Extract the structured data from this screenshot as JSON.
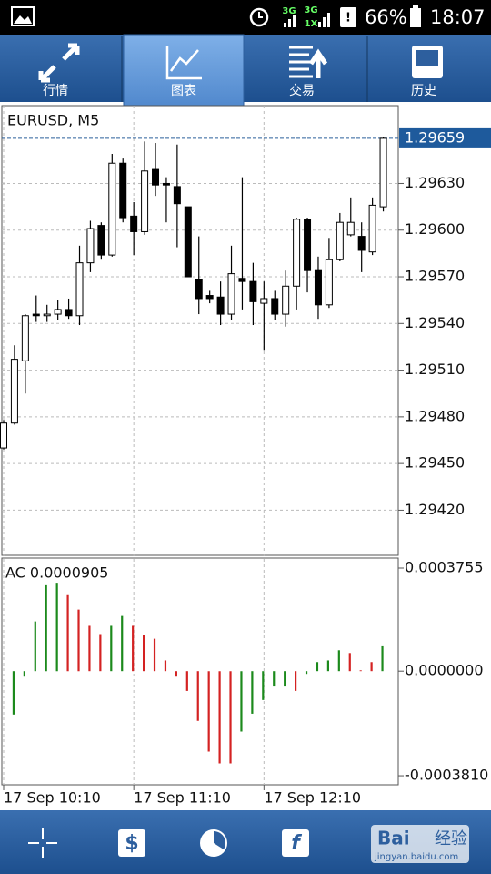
{
  "status_bar": {
    "network_1": "3G",
    "network_2": "3G",
    "network_3": "1X",
    "battery": "66%",
    "time": "18:07"
  },
  "tabs": [
    "行情",
    "图表",
    "交易",
    "历史"
  ],
  "chart_data": [
    {
      "type": "candlestick",
      "title": "EURUSD, M5",
      "categories": [
        "17 Sep 10:10",
        null,
        null,
        null,
        null,
        null,
        null,
        null,
        null,
        null,
        null,
        null,
        "17 Sep 11:10",
        null,
        null,
        null,
        null,
        null,
        null,
        null,
        null,
        null,
        null,
        null,
        "17 Sep 12:10",
        null,
        null,
        null,
        null,
        null,
        null,
        null,
        null,
        null,
        null,
        null
      ],
      "open": [
        1.2946,
        1.29476,
        1.29516,
        1.29546,
        1.29545,
        1.29546,
        1.29549,
        1.29545,
        1.29579,
        1.29603,
        1.29584,
        1.29643,
        1.29609,
        1.29599,
        1.29639,
        1.2963,
        1.29628,
        1.29615,
        1.29568,
        1.29558,
        1.29557,
        1.29546,
        1.29569,
        1.29567,
        1.29553,
        1.29556,
        1.29546,
        1.29564,
        1.29607,
        1.29574,
        1.29552,
        1.29581,
        1.29597,
        1.29596,
        1.29586,
        1.29615
      ],
      "high": [
        1.29478,
        1.29526,
        1.29546,
        1.29558,
        1.29552,
        1.29555,
        1.29556,
        1.2959,
        1.29606,
        1.29605,
        1.29649,
        1.29646,
        1.29618,
        1.29657,
        1.29656,
        1.29634,
        1.29655,
        1.29615,
        1.29596,
        1.29561,
        1.29567,
        1.2959,
        1.29634,
        1.29579,
        1.29567,
        1.29561,
        1.29574,
        1.29608,
        1.29608,
        1.29583,
        1.29595,
        1.29611,
        1.29621,
        1.29605,
        1.29621,
        1.2966
      ],
      "low": [
        1.29459,
        1.29475,
        1.29495,
        1.29541,
        1.29541,
        1.29542,
        1.29543,
        1.29539,
        1.29573,
        1.29581,
        1.29583,
        1.29605,
        1.29584,
        1.29597,
        1.29622,
        1.29605,
        1.29589,
        1.2957,
        1.29546,
        1.29553,
        1.29539,
        1.29542,
        1.29549,
        1.29539,
        1.29523,
        1.29542,
        1.29538,
        1.29549,
        1.2956,
        1.29543,
        1.2955,
        1.2958,
        1.29596,
        1.29573,
        1.29584,
        1.29612
      ],
      "close": [
        1.29476,
        1.29517,
        1.29545,
        1.29545,
        1.29546,
        1.29549,
        1.29545,
        1.29579,
        1.29601,
        1.29584,
        1.29643,
        1.29608,
        1.29599,
        1.29638,
        1.29629,
        1.29629,
        1.29617,
        1.2957,
        1.29556,
        1.29556,
        1.29546,
        1.29572,
        1.29567,
        1.29554,
        1.29556,
        1.29546,
        1.29564,
        1.29607,
        1.29574,
        1.29552,
        1.29581,
        1.29605,
        1.29605,
        1.29587,
        1.29616,
        1.29659
      ],
      "up_color": "#ffffff",
      "down_color": "#000000",
      "current_price": 1.29659,
      "ylim": [
        1.29391,
        1.2968
      ],
      "yticks": [
        {
          "value": 1.2963,
          "label": "1.29630"
        },
        {
          "value": 1.296,
          "label": "1.29600"
        },
        {
          "value": 1.2957,
          "label": "1.29570"
        },
        {
          "value": 1.2954,
          "label": "1.29540"
        },
        {
          "value": 1.2951,
          "label": "1.29510"
        },
        {
          "value": 1.2948,
          "label": "1.29480"
        },
        {
          "value": 1.2945,
          "label": "1.29450"
        },
        {
          "value": 1.2942,
          "label": "1.29420"
        }
      ],
      "grid": true
    },
    {
      "type": "bar",
      "title": "AC 0.0000905",
      "values": [
        -0.000158,
        -2e-05,
        0.000181,
        0.000313,
        0.000322,
        0.00028,
        0.000224,
        0.000165,
        0.000135,
        0.000165,
        0.000201,
        0.000165,
        0.000132,
        0.000118,
        3.9e-05,
        -2e-05,
        -7.2e-05,
        -0.000181,
        -0.000293,
        -0.000336,
        -0.000336,
        -0.00022,
        -0.000155,
        -0.000105,
        -5.6e-05,
        -5.6e-05,
        -7.2e-05,
        -1e-05,
        3.3e-05,
        3.9e-05,
        7.6e-05,
        6.6e-05,
        3e-06,
        3.3e-05,
        9.05e-05
      ],
      "colors": [
        "#1c8a1c",
        "#1c8a1c",
        "#1c8a1c",
        "#1c8a1c",
        "#1c8a1c",
        "#d42222",
        "#d42222",
        "#d42222",
        "#d42222",
        "#1c8a1c",
        "#1c8a1c",
        "#d42222",
        "#d42222",
        "#d42222",
        "#d42222",
        "#d42222",
        "#d42222",
        "#d42222",
        "#d42222",
        "#d42222",
        "#d42222",
        "#1c8a1c",
        "#1c8a1c",
        "#1c8a1c",
        "#1c8a1c",
        "#1c8a1c",
        "#d42222",
        "#1c8a1c",
        "#1c8a1c",
        "#1c8a1c",
        "#1c8a1c",
        "#d42222",
        "#d42222",
        "#d42222",
        "#1c8a1c"
      ],
      "ylim": [
        -0.000414,
        0.000412
      ],
      "yticks": [
        0.0003755,
        {
          "value": 0,
          "label": "0.0000000"
        },
        {
          "value": -0.000381,
          "label": "-0.0003810"
        }
      ]
    }
  ],
  "watermark": {
    "brand": "Bai",
    "brand_2": "经验",
    "url": "jingyan.baidu.com"
  }
}
